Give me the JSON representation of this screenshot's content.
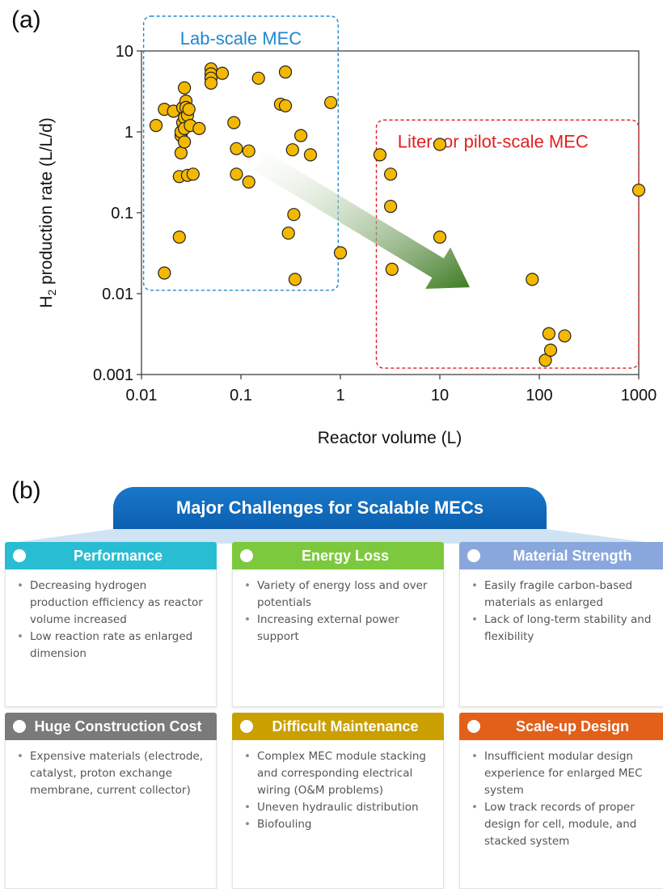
{
  "panel_a_label": "(a)",
  "panel_b_label": "(b)",
  "chart_data": {
    "type": "scatter",
    "xlabel": "Reactor volume (L)",
    "ylabel": "H2 production rate (L/L/d)",
    "xscale": "log",
    "yscale": "log",
    "xlim": [
      0.01,
      1000
    ],
    "ylim": [
      0.001,
      10
    ],
    "xticks": [
      "0.01",
      "0.1",
      "1",
      "10",
      "100",
      "1000"
    ],
    "yticks": [
      "0.001",
      "0.01",
      "0.1",
      "1",
      "10"
    ],
    "grid": false,
    "point_color": "#f5b800",
    "annotations": [
      {
        "text": "Lab-scale  MEC",
        "color": "#1e88d0",
        "region": {
          "x": [
            0.0105,
            0.95
          ],
          "y": [
            0.011,
            10
          ]
        }
      },
      {
        "text": "Liter- or pilot-scale MEC",
        "color": "#e02020",
        "region": {
          "x": [
            2.3,
            1000
          ],
          "y": [
            0.0012,
            1.4
          ]
        }
      }
    ],
    "arrow": {
      "from": [
        0.15,
        0.45
      ],
      "to": [
        20,
        0.012
      ],
      "color": "#4d8a2c"
    },
    "points": [
      [
        0.014,
        1.2
      ],
      [
        0.017,
        1.9
      ],
      [
        0.017,
        0.018
      ],
      [
        0.021,
        1.8
      ],
      [
        0.024,
        0.05
      ],
      [
        0.024,
        0.28
      ],
      [
        0.025,
        0.55
      ],
      [
        0.025,
        0.9
      ],
      [
        0.025,
        1.0
      ],
      [
        0.026,
        1.3
      ],
      [
        0.026,
        2.0
      ],
      [
        0.027,
        1.5
      ],
      [
        0.027,
        1.1
      ],
      [
        0.027,
        0.75
      ],
      [
        0.027,
        3.5
      ],
      [
        0.028,
        2.4
      ],
      [
        0.028,
        2.0
      ],
      [
        0.029,
        1.6
      ],
      [
        0.029,
        0.29
      ],
      [
        0.03,
        1.9
      ],
      [
        0.031,
        1.2
      ],
      [
        0.033,
        0.3
      ],
      [
        0.038,
        1.1
      ],
      [
        0.05,
        6.0
      ],
      [
        0.05,
        5.2
      ],
      [
        0.05,
        4.6
      ],
      [
        0.05,
        4.0
      ],
      [
        0.065,
        5.3
      ],
      [
        0.085,
        1.3
      ],
      [
        0.09,
        0.62
      ],
      [
        0.09,
        0.3
      ],
      [
        0.12,
        0.58
      ],
      [
        0.12,
        0.24
      ],
      [
        0.15,
        4.6
      ],
      [
        0.25,
        2.2
      ],
      [
        0.28,
        5.5
      ],
      [
        0.28,
        2.1
      ],
      [
        0.3,
        0.056
      ],
      [
        0.33,
        0.6
      ],
      [
        0.34,
        0.095
      ],
      [
        0.35,
        0.015
      ],
      [
        0.4,
        0.9
      ],
      [
        0.5,
        0.52
      ],
      [
        0.8,
        2.3
      ],
      [
        1.0,
        0.032
      ],
      [
        2.5,
        0.52
      ],
      [
        3.2,
        0.3
      ],
      [
        3.2,
        0.12
      ],
      [
        3.3,
        0.02
      ],
      [
        10,
        0.7
      ],
      [
        10,
        0.05
      ],
      [
        85,
        0.015
      ],
      [
        115,
        0.0015
      ],
      [
        125,
        0.0032
      ],
      [
        130,
        0.002
      ],
      [
        180,
        0.003
      ],
      [
        1000,
        0.19
      ]
    ]
  },
  "header": {
    "title": "Major Challenges for Scalable MECs"
  },
  "cards": [
    {
      "title": "Performance",
      "color": "#29bdd4",
      "items": [
        "Decreasing hydrogen production efficiency as reactor volume increased",
        "Low reaction rate as enlarged dimension"
      ]
    },
    {
      "title": "Energy Loss",
      "color": "#7dc93e",
      "items": [
        "Variety of energy loss and over potentials",
        "Increasing external power support"
      ]
    },
    {
      "title": "Material Strength",
      "color": "#8aa7dd",
      "items": [
        "Easily fragile carbon-based materials as enlarged",
        "Lack of long-term stability and flexibility"
      ]
    },
    {
      "title": "Huge Construction Cost",
      "color": "#7a7a7a",
      "items": [
        "Expensive materials (electrode, catalyst, proton exchange membrane, current collector)"
      ]
    },
    {
      "title": "Difficult Maintenance",
      "color": "#c9a000",
      "items": [
        "Complex MEC module stacking and corresponding electrical wiring (O&M problems)",
        "Uneven hydraulic distribution",
        "Biofouling"
      ]
    },
    {
      "title": "Scale-up Design",
      "color": "#e2601a",
      "items": [
        "Insufficient modular design experience for enlarged MEC system",
        "Low track records of proper design for cell, module, and stacked system"
      ]
    }
  ]
}
